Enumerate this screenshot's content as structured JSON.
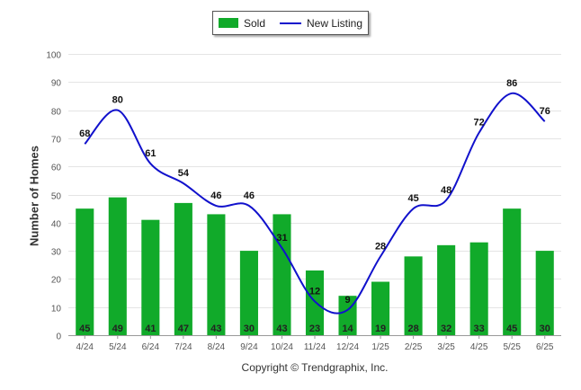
{
  "chart_data": {
    "type": "bar",
    "y_axis_title": "Number of Homes",
    "ylim": [
      0,
      100
    ],
    "y_ticks": [
      0,
      10,
      20,
      30,
      40,
      50,
      60,
      70,
      80,
      90,
      100
    ],
    "grid": true,
    "legend_position": "top-center",
    "categories": [
      "4/24",
      "5/24",
      "6/24",
      "7/24",
      "8/24",
      "9/24",
      "10/24",
      "11/24",
      "12/24",
      "1/25",
      "2/25",
      "3/25",
      "4/25",
      "5/25",
      "6/25"
    ],
    "series": [
      {
        "name": "Sold",
        "type": "bar",
        "color": "#11aa2a",
        "values": [
          45,
          49,
          41,
          47,
          43,
          30,
          43,
          23,
          14,
          19,
          28,
          32,
          33,
          45,
          30
        ]
      },
      {
        "name": "New Listing",
        "type": "line",
        "color": "#1111cc",
        "values": [
          68,
          80,
          61,
          54,
          46,
          46,
          31,
          12,
          9,
          28,
          45,
          48,
          72,
          86,
          76
        ]
      }
    ]
  },
  "copyright": "Copyright © Trendgraphix, Inc."
}
